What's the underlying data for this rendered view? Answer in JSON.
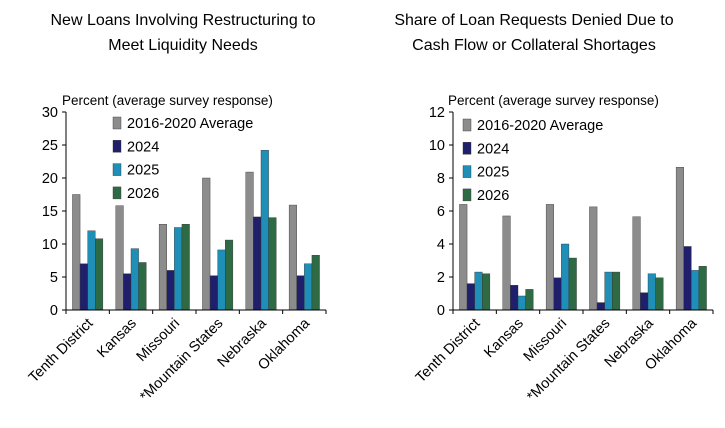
{
  "chart_data": [
    {
      "type": "bar",
      "title": "New Loans Involving Restructuring to Meet Liquidity Needs",
      "title_lines": [
        "New Loans Involving Restructuring to",
        "Meet Liquidity Needs"
      ],
      "ylabel": "Percent (average survey response)",
      "xlabel": "",
      "ylim": [
        0,
        30
      ],
      "yticks": [
        0,
        5,
        10,
        15,
        20,
        25,
        30
      ],
      "categories": [
        "Tenth District",
        "Kansas",
        "Missouri",
        "*Mountain States",
        "Nebraska",
        "Oklahoma"
      ],
      "grid": false,
      "legend": "top-left",
      "series": [
        {
          "name": "2016-2020 Average",
          "color": "#8c8c8c",
          "values": [
            17.5,
            15.8,
            13.0,
            20.0,
            20.9,
            15.9
          ]
        },
        {
          "name": "2024",
          "color": "#1f1f6b",
          "values": [
            7.0,
            5.5,
            6.0,
            5.2,
            14.1,
            5.2
          ]
        },
        {
          "name": "2025",
          "color": "#1f8fb8",
          "values": [
            12.0,
            9.3,
            12.5,
            9.1,
            24.2,
            7.0
          ]
        },
        {
          "name": "2026",
          "color": "#2e6b45",
          "values": [
            10.8,
            7.2,
            13.0,
            10.6,
            14.0,
            8.3
          ]
        }
      ]
    },
    {
      "type": "bar",
      "title": "Share of Loan Requests Denied Due to Cash Flow or Collateral Shortages",
      "title_lines": [
        "Share of Loan Requests Denied Due to",
        "Cash Flow or Collateral Shortages"
      ],
      "ylabel": "Percent (average survey response)",
      "xlabel": "",
      "ylim": [
        0,
        12
      ],
      "yticks": [
        0,
        2,
        4,
        6,
        8,
        10,
        12
      ],
      "categories": [
        "Tenth District",
        "Kansas",
        "Missouri",
        "*Mountain States",
        "Nebraska",
        "Oklahoma"
      ],
      "grid": false,
      "legend": "top-left",
      "series": [
        {
          "name": "2016-2020 Average",
          "color": "#8c8c8c",
          "values": [
            6.4,
            5.7,
            6.4,
            6.25,
            5.65,
            8.65
          ]
        },
        {
          "name": "2024",
          "color": "#1f1f6b",
          "values": [
            1.6,
            1.5,
            1.95,
            0.45,
            1.05,
            3.85
          ]
        },
        {
          "name": "2025",
          "color": "#1f8fb8",
          "values": [
            2.3,
            0.85,
            4.0,
            2.3,
            2.2,
            2.4
          ]
        },
        {
          "name": "2026",
          "color": "#2e6b45",
          "values": [
            2.2,
            1.25,
            3.15,
            2.3,
            1.95,
            2.65
          ]
        }
      ]
    }
  ]
}
